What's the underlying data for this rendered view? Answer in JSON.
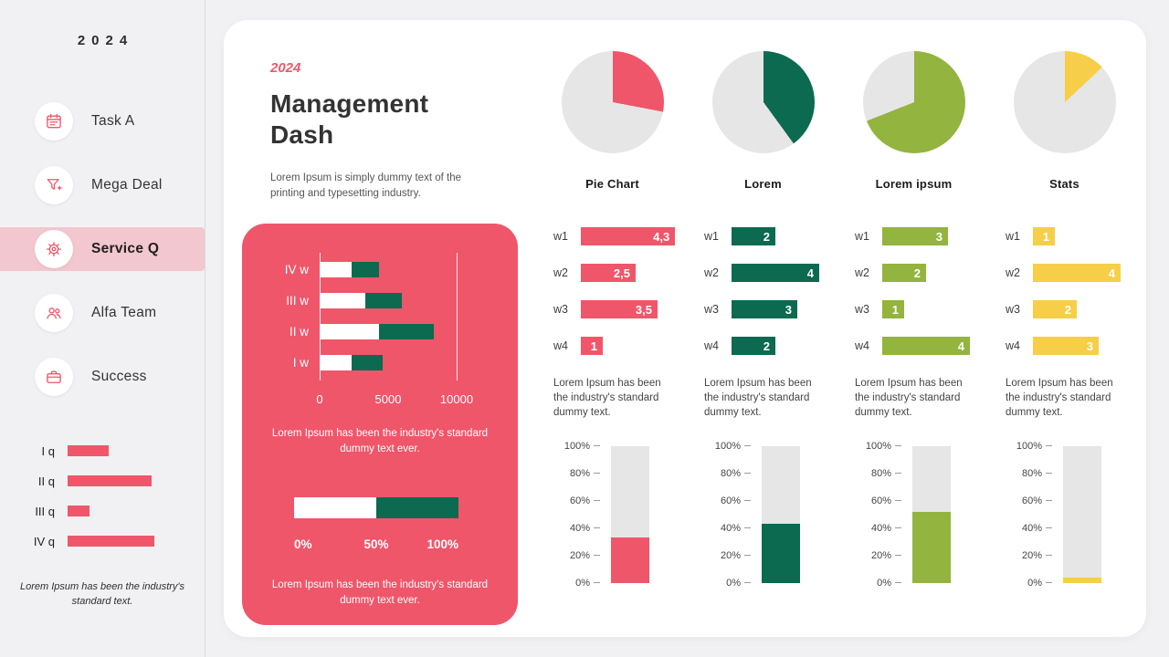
{
  "colors": {
    "pink": "#EF566A",
    "pink_light": "#F3C7CF",
    "green": "#0B6A50",
    "olive": "#93B43E",
    "yellow": "#F7CE47",
    "gray": "#E6E6E6"
  },
  "sidebar": {
    "year": "2024",
    "items": [
      {
        "label": "Task A",
        "icon": "calendar-icon",
        "active": false
      },
      {
        "label": "Mega Deal",
        "icon": "funnel-icon",
        "active": false
      },
      {
        "label": "Service Q",
        "icon": "gear-icon",
        "active": true
      },
      {
        "label": "Alfa Team",
        "icon": "team-icon",
        "active": false
      },
      {
        "label": "Success",
        "icon": "briefcase-icon",
        "active": false
      }
    ],
    "caption": "Lorem Ipsum has been the industry's standard text."
  },
  "header": {
    "year_tag": "2024",
    "title": "Management Dash",
    "subtitle": "Lorem Ipsum is simply dummy text of the printing and typesetting industry."
  },
  "pink_panel": {
    "caption_top": "Lorem Ipsum has been the industry's standard dummy text ever.",
    "caption_bottom": "Lorem Ipsum has been the industry's standard dummy text ever."
  },
  "column_text": "Lorem Ipsum has been the industry's standard dummy text.",
  "chart_data": [
    {
      "id": "sidebar-quarterly",
      "type": "bar",
      "orientation": "horizontal",
      "categories": [
        "I q",
        "II q",
        "III q",
        "IV q"
      ],
      "values": [
        32,
        66,
        17,
        68
      ],
      "value_unit": "percent-of-chart-width",
      "color_key": "pink"
    },
    {
      "id": "weekly-stacked",
      "type": "bar",
      "orientation": "horizontal",
      "stacked": true,
      "categories": [
        "IV w",
        "III w",
        "II w",
        "I w"
      ],
      "series": [
        {
          "name": "segment-a",
          "color": "#FFFFFF",
          "values": [
            2300,
            3300,
            4300,
            2300
          ]
        },
        {
          "name": "segment-b",
          "color_key": "green",
          "values": [
            2000,
            2700,
            4000,
            2300
          ]
        }
      ],
      "xlim": [
        0,
        10000
      ],
      "x_ticks": [
        "0",
        "5000",
        "10000"
      ]
    },
    {
      "id": "progress",
      "type": "bar",
      "stacked": true,
      "segments": [
        {
          "name": "first-half",
          "color": "#FFFFFF",
          "pct": 50
        },
        {
          "name": "second-half",
          "color_key": "green",
          "pct": 50
        }
      ],
      "x_ticks": [
        "0%",
        "50%",
        "100%"
      ]
    },
    {
      "id": "pies",
      "type": "pie",
      "remainder_color_key": "gray",
      "items": [
        {
          "label": "Pie Chart",
          "pct": 28,
          "color_key": "pink"
        },
        {
          "label": "Lorem",
          "pct": 40,
          "color_key": "green"
        },
        {
          "label": "Lorem ipsum",
          "pct": 69,
          "color_key": "olive"
        },
        {
          "label": "Stats",
          "pct": 13,
          "color_key": "yellow"
        }
      ]
    },
    {
      "id": "weekly-bars",
      "type": "bar",
      "orientation": "horizontal",
      "categories": [
        "w1",
        "w2",
        "w3",
        "w4"
      ],
      "max": 5,
      "series": [
        {
          "name": "Pie Chart",
          "color_key": "pink",
          "values": [
            4.3,
            2.5,
            3.5,
            1
          ],
          "labels": [
            "4,3",
            "2,5",
            "3,5",
            "1"
          ]
        },
        {
          "name": "Lorem",
          "color_key": "green",
          "values": [
            2,
            4,
            3,
            2
          ],
          "labels": [
            "2",
            "4",
            "3",
            "2"
          ]
        },
        {
          "name": "Lorem ipsum",
          "color_key": "olive",
          "values": [
            3,
            2,
            1,
            4
          ],
          "labels": [
            "3",
            "2",
            "1",
            "4"
          ]
        },
        {
          "name": "Stats",
          "color_key": "yellow",
          "values": [
            1,
            4,
            2,
            3
          ],
          "labels": [
            "1",
            "4",
            "2",
            "3"
          ]
        }
      ]
    },
    {
      "id": "percent-columns",
      "type": "bar",
      "orientation": "vertical",
      "ylim": [
        0,
        100
      ],
      "y_ticks": [
        "100%",
        "80%",
        "60%",
        "40%",
        "20%",
        "0%"
      ],
      "values": [
        33,
        43,
        52,
        4
      ],
      "color_keys": [
        "pink",
        "green",
        "olive",
        "yellow"
      ]
    }
  ]
}
